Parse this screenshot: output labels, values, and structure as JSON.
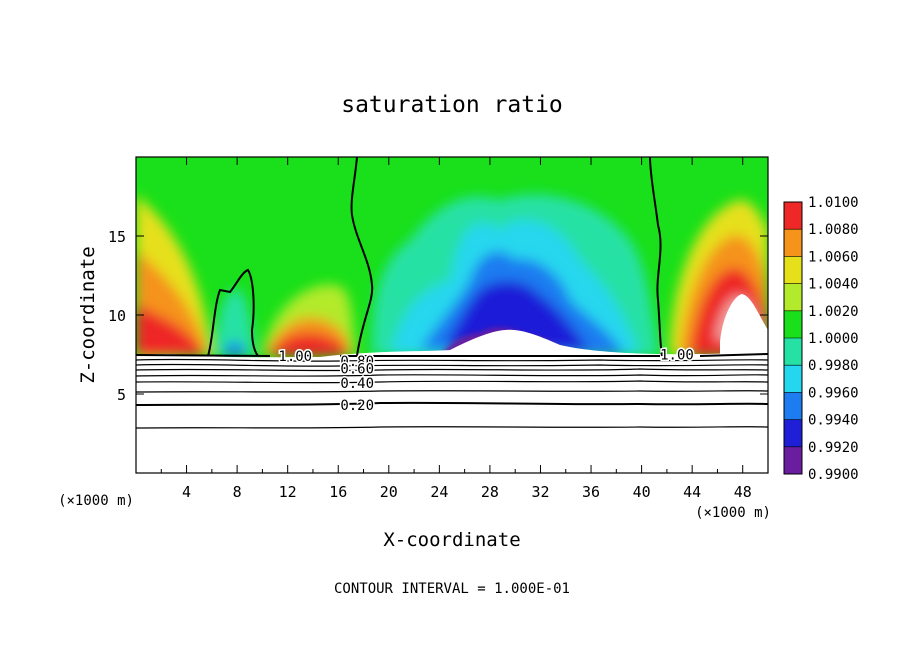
{
  "chart_data": {
    "type": "heatmap",
    "title": "saturation ratio",
    "xlabel": "X-coordinate",
    "ylabel": "Z-coordinate",
    "x_unit_left": "(×1000 m)",
    "x_unit_right": "(×1000 m)",
    "footer": "CONTOUR INTERVAL = 1.000E-01",
    "xlim": [
      0,
      50
    ],
    "ylim": [
      0,
      20
    ],
    "x_ticks": [
      4,
      8,
      12,
      16,
      20,
      24,
      28,
      32,
      36,
      40,
      44,
      48
    ],
    "y_ticks": [
      5,
      10,
      15
    ],
    "colorbar": {
      "levels": [
        "0.9900",
        "0.9920",
        "0.9940",
        "0.9960",
        "0.9980",
        "1.0000",
        "1.0020",
        "1.0040",
        "1.0060",
        "1.0080",
        "1.0100"
      ],
      "colors": [
        "#6a1d9e",
        "#1f1fd8",
        "#1c7cf0",
        "#25d7ee",
        "#26e1a4",
        "#19e01a",
        "#b3ea2c",
        "#e6e01b",
        "#f5931a",
        "#ee2727",
        "#f2a3a3"
      ]
    },
    "contour_labels": [
      {
        "text": "1.00",
        "x": 12.6,
        "y": 7.4
      },
      {
        "text": "0.80",
        "x": 17.5,
        "y": 7.1
      },
      {
        "text": "0.60",
        "x": 17.5,
        "y": 6.6
      },
      {
        "text": "0.40",
        "x": 17.5,
        "y": 5.7
      },
      {
        "text": "0.20",
        "x": 17.5,
        "y": 4.3
      },
      {
        "text": "1.00",
        "x": 42.8,
        "y": 7.5
      }
    ]
  }
}
